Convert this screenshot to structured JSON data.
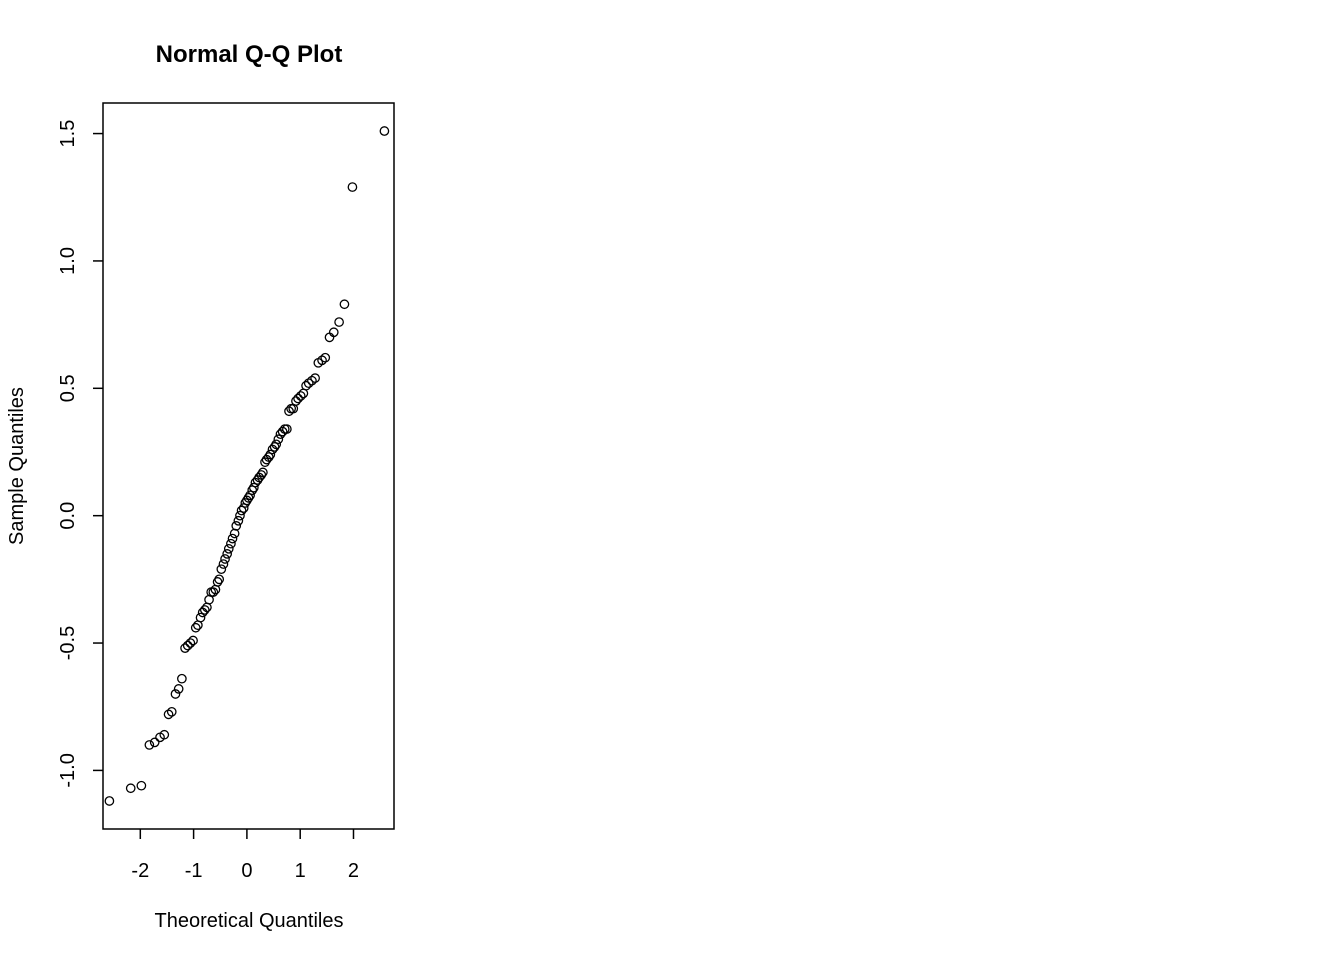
{
  "chart_data": {
    "type": "scatter",
    "title": "Normal Q-Q Plot",
    "xlabel": "Theoretical Quantiles",
    "ylabel": "Sample Quantiles",
    "xlim": [
      -2.7,
      2.76
    ],
    "ylim": [
      -1.23,
      1.62
    ],
    "xticks": [
      -2,
      -1,
      0,
      1,
      2
    ],
    "xtick_labels": [
      "-2",
      "-1",
      "0",
      "1",
      "2"
    ],
    "yticks": [
      -1.0,
      -0.5,
      0.0,
      0.5,
      1.0,
      1.5
    ],
    "ytick_labels": [
      "-1.0",
      "-0.5",
      "0.0",
      "0.5",
      "1.0",
      "1.5"
    ],
    "grid": false,
    "legend": "none",
    "points": [
      [
        -2.58,
        -1.12
      ],
      [
        -2.18,
        -1.07
      ],
      [
        -1.98,
        -1.06
      ],
      [
        -1.83,
        -0.9
      ],
      [
        -1.73,
        -0.89
      ],
      [
        -1.63,
        -0.87
      ],
      [
        -1.55,
        -0.86
      ],
      [
        -1.47,
        -0.78
      ],
      [
        -1.41,
        -0.77
      ],
      [
        -1.34,
        -0.7
      ],
      [
        -1.28,
        -0.68
      ],
      [
        -1.22,
        -0.64
      ],
      [
        -1.16,
        -0.52
      ],
      [
        -1.11,
        -0.51
      ],
      [
        -1.06,
        -0.5
      ],
      [
        -1.01,
        -0.49
      ],
      [
        -0.96,
        -0.44
      ],
      [
        -0.92,
        -0.43
      ],
      [
        -0.87,
        -0.4
      ],
      [
        -0.83,
        -0.38
      ],
      [
        -0.79,
        -0.37
      ],
      [
        -0.75,
        -0.36
      ],
      [
        -0.71,
        -0.33
      ],
      [
        -0.67,
        -0.3
      ],
      [
        -0.63,
        -0.3
      ],
      [
        -0.59,
        -0.29
      ],
      [
        -0.55,
        -0.26
      ],
      [
        -0.52,
        -0.25
      ],
      [
        -0.48,
        -0.21
      ],
      [
        -0.44,
        -0.19
      ],
      [
        -0.41,
        -0.17
      ],
      [
        -0.37,
        -0.15
      ],
      [
        -0.34,
        -0.13
      ],
      [
        -0.3,
        -0.11
      ],
      [
        -0.27,
        -0.09
      ],
      [
        -0.23,
        -0.07
      ],
      [
        -0.2,
        -0.04
      ],
      [
        -0.16,
        -0.02
      ],
      [
        -0.13,
        0.0
      ],
      [
        -0.1,
        0.02
      ],
      [
        -0.06,
        0.03
      ],
      [
        -0.03,
        0.05
      ],
      [
        0.0,
        0.06
      ],
      [
        0.03,
        0.07
      ],
      [
        0.06,
        0.08
      ],
      [
        0.1,
        0.1
      ],
      [
        0.13,
        0.11
      ],
      [
        0.16,
        0.13
      ],
      [
        0.2,
        0.14
      ],
      [
        0.23,
        0.15
      ],
      [
        0.27,
        0.16
      ],
      [
        0.3,
        0.17
      ],
      [
        0.34,
        0.21
      ],
      [
        0.37,
        0.22
      ],
      [
        0.41,
        0.23
      ],
      [
        0.44,
        0.24
      ],
      [
        0.48,
        0.26
      ],
      [
        0.52,
        0.27
      ],
      [
        0.55,
        0.28
      ],
      [
        0.59,
        0.3
      ],
      [
        0.63,
        0.32
      ],
      [
        0.67,
        0.33
      ],
      [
        0.71,
        0.34
      ],
      [
        0.75,
        0.34
      ],
      [
        0.79,
        0.41
      ],
      [
        0.83,
        0.42
      ],
      [
        0.87,
        0.42
      ],
      [
        0.92,
        0.45
      ],
      [
        0.96,
        0.46
      ],
      [
        1.01,
        0.47
      ],
      [
        1.06,
        0.48
      ],
      [
        1.11,
        0.51
      ],
      [
        1.16,
        0.52
      ],
      [
        1.22,
        0.53
      ],
      [
        1.28,
        0.54
      ],
      [
        1.34,
        0.6
      ],
      [
        1.41,
        0.61
      ],
      [
        1.47,
        0.62
      ],
      [
        1.55,
        0.7
      ],
      [
        1.63,
        0.72
      ],
      [
        1.73,
        0.76
      ],
      [
        1.83,
        0.83
      ],
      [
        1.98,
        1.29
      ],
      [
        2.58,
        1.51
      ]
    ]
  }
}
